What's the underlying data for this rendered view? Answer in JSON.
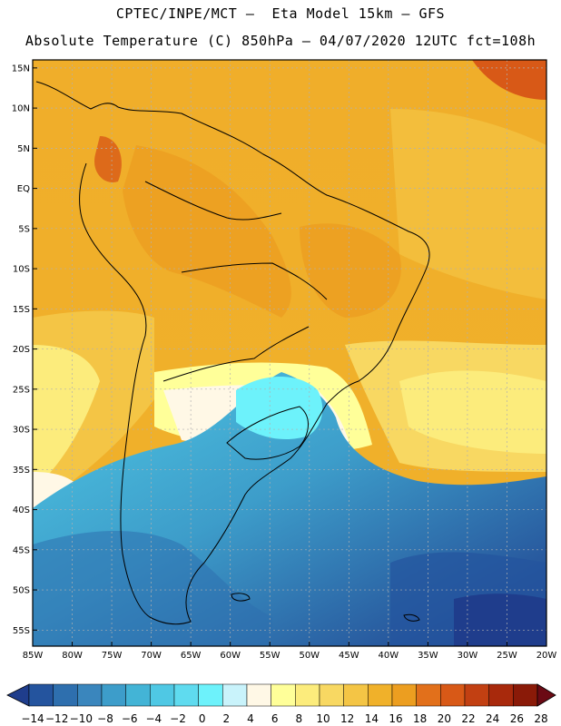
{
  "header": {
    "line1": "CPTEC/INPE/MCT –  Eta Model 15km – GFS",
    "line2": "Absolute Temperature (C) 850hPa – 04/07/2020 12UTC fct=108h"
  },
  "map": {
    "lat_labels": [
      "15N",
      "10N",
      "5N",
      "EQ",
      "5S",
      "10S",
      "15S",
      "20S",
      "25S",
      "30S",
      "35S",
      "40S",
      "45S",
      "50S",
      "55S"
    ],
    "lon_labels": [
      "85W",
      "80W",
      "75W",
      "70W",
      "65W",
      "60W",
      "55W",
      "50W",
      "45W",
      "40W",
      "35W",
      "30W",
      "25W",
      "20W"
    ],
    "extent": {
      "lon_min": -85,
      "lon_max": -20,
      "lat_min": -57,
      "lat_max": 16
    }
  },
  "colorbar": {
    "labels": [
      "-14",
      "-12",
      "-10",
      "-8",
      "-6",
      "-4",
      "-2",
      "0",
      "2",
      "4",
      "6",
      "8",
      "10",
      "12",
      "14",
      "16",
      "18",
      "20",
      "22",
      "24",
      "26",
      "28"
    ],
    "colors": [
      "#1f3d8c",
      "#24549e",
      "#2e6fae",
      "#3a86bd",
      "#3d9dca",
      "#43b4d6",
      "#4fc8e4",
      "#5fdbef",
      "#6df2fb",
      "#c9f3fb",
      "#fff8e6",
      "#ffff99",
      "#fcec7c",
      "#f8d862",
      "#f4c545",
      "#f0b12a",
      "#ec9e20",
      "#e2701b",
      "#d85917",
      "#c24012",
      "#a8290c",
      "#8a1a08",
      "#6b0a14"
    ]
  }
}
